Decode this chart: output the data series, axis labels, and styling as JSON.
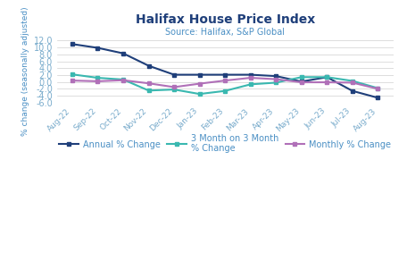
{
  "title": "Halifax House Price Index",
  "subtitle": "Source: Halifax, S&P Global",
  "ylabel": "% change (seasonally adjusted)",
  "title_color": "#1f3f7a",
  "subtitle_color": "#4a8fc4",
  "axis_color": "#4a8fc4",
  "tick_color": "#7aaccc",
  "categories": [
    "Aug-22",
    "Sep-22",
    "Oct-22",
    "Nov-22",
    "Dec-22",
    "Jan-23",
    "Feb-23",
    "Mar-23",
    "Apr-23",
    "May-23",
    "Jun-23",
    "Jul-23",
    "Aug-23"
  ],
  "annual": [
    11.0,
    9.9,
    8.3,
    4.7,
    2.1,
    2.1,
    2.1,
    2.1,
    1.7,
    0.1,
    1.4,
    -2.6,
    -4.6
  ],
  "three_month": [
    2.2,
    1.2,
    0.7,
    -2.5,
    -2.2,
    -3.5,
    -2.6,
    -0.7,
    -0.2,
    1.4,
    1.4,
    0.3,
    -1.8
  ],
  "monthly": [
    0.4,
    0.2,
    0.5,
    -0.4,
    -1.5,
    -0.5,
    0.4,
    1.2,
    0.8,
    -0.1,
    -0.1,
    -0.2,
    -2.0
  ],
  "annual_color": "#1f3f7a",
  "three_month_color": "#3ab8b0",
  "monthly_color": "#b070b8",
  "ylim": [
    -6.0,
    12.0
  ],
  "yticks": [
    -6.0,
    -4.0,
    -2.0,
    0.0,
    2.0,
    4.0,
    6.0,
    8.0,
    10.0,
    12.0
  ],
  "legend_labels": [
    "Annual % Change",
    "3 Month on 3 Month\n% Change",
    "Monthly % Change"
  ]
}
